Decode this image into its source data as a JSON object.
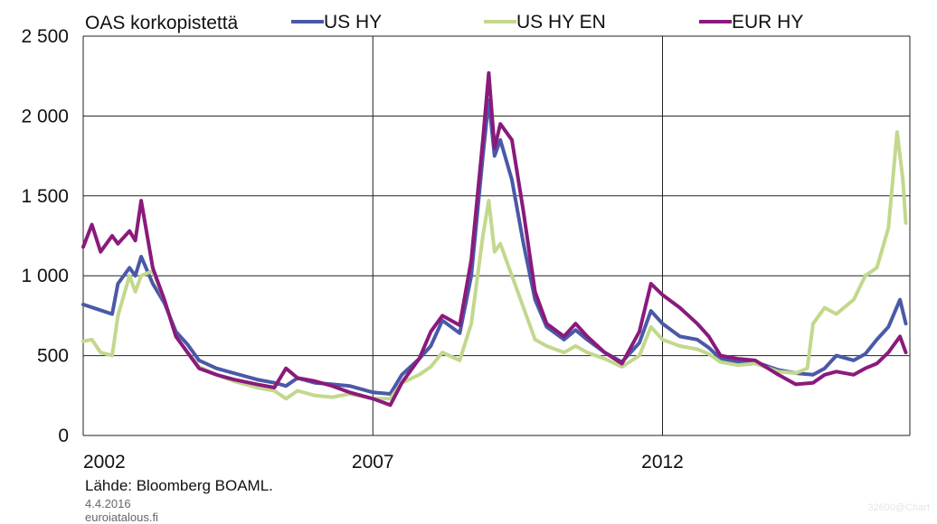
{
  "chart_data": {
    "type": "line",
    "title": "OAS korkopistettä",
    "x_tick_labels": [
      "2002",
      "2007",
      "2012"
    ],
    "x_ticks": [
      2002,
      2007,
      2012
    ],
    "xlim": [
      2002.0,
      2016.27
    ],
    "ylim": [
      0,
      2500
    ],
    "y_ticks": [
      0,
      500,
      1000,
      1500,
      2000,
      2500
    ],
    "y_tick_labels": [
      "0",
      "500",
      "1 000",
      "1 500",
      "2 000",
      "2 500"
    ],
    "grid": "vertical at year ticks, horizontal at 500 steps",
    "legend_placement": "top",
    "series": [
      {
        "name": "US HY",
        "color": "#4a59a7",
        "points": [
          [
            2002.0,
            820
          ],
          [
            2002.25,
            790
          ],
          [
            2002.5,
            760
          ],
          [
            2002.6,
            950
          ],
          [
            2002.8,
            1050
          ],
          [
            2002.9,
            1000
          ],
          [
            2003.0,
            1120
          ],
          [
            2003.2,
            950
          ],
          [
            2003.4,
            830
          ],
          [
            2003.6,
            650
          ],
          [
            2003.8,
            570
          ],
          [
            2004.0,
            470
          ],
          [
            2004.3,
            420
          ],
          [
            2004.6,
            390
          ],
          [
            2005.0,
            350
          ],
          [
            2005.3,
            330
          ],
          [
            2005.5,
            310
          ],
          [
            2005.7,
            360
          ],
          [
            2006.0,
            330
          ],
          [
            2006.3,
            320
          ],
          [
            2006.6,
            310
          ],
          [
            2007.0,
            270
          ],
          [
            2007.3,
            260
          ],
          [
            2007.5,
            380
          ],
          [
            2007.8,
            480
          ],
          [
            2008.0,
            560
          ],
          [
            2008.2,
            720
          ],
          [
            2008.5,
            640
          ],
          [
            2008.7,
            1000
          ],
          [
            2008.9,
            1750
          ],
          [
            2009.0,
            2100
          ],
          [
            2009.1,
            1750
          ],
          [
            2009.2,
            1850
          ],
          [
            2009.4,
            1600
          ],
          [
            2009.6,
            1200
          ],
          [
            2009.8,
            850
          ],
          [
            2010.0,
            680
          ],
          [
            2010.3,
            600
          ],
          [
            2010.5,
            660
          ],
          [
            2010.7,
            600
          ],
          [
            2011.0,
            520
          ],
          [
            2011.3,
            460
          ],
          [
            2011.6,
            580
          ],
          [
            2011.8,
            780
          ],
          [
            2012.0,
            700
          ],
          [
            2012.3,
            620
          ],
          [
            2012.6,
            600
          ],
          [
            2012.8,
            550
          ],
          [
            2013.0,
            480
          ],
          [
            2013.3,
            460
          ],
          [
            2013.6,
            460
          ],
          [
            2014.0,
            410
          ],
          [
            2014.3,
            390
          ],
          [
            2014.6,
            380
          ],
          [
            2014.8,
            420
          ],
          [
            2015.0,
            500
          ],
          [
            2015.3,
            470
          ],
          [
            2015.5,
            510
          ],
          [
            2015.7,
            600
          ],
          [
            2015.9,
            680
          ],
          [
            2016.1,
            850
          ],
          [
            2016.2,
            700
          ]
        ]
      },
      {
        "name": "US HY EN",
        "color": "#c2d88d",
        "points": [
          [
            2002.0,
            590
          ],
          [
            2002.15,
            600
          ],
          [
            2002.3,
            520
          ],
          [
            2002.5,
            500
          ],
          [
            2002.6,
            750
          ],
          [
            2002.8,
            1000
          ],
          [
            2002.9,
            900
          ],
          [
            2003.0,
            1000
          ],
          [
            2003.2,
            1030
          ],
          [
            2003.4,
            850
          ],
          [
            2003.6,
            620
          ],
          [
            2003.8,
            520
          ],
          [
            2004.0,
            430
          ],
          [
            2004.3,
            380
          ],
          [
            2004.6,
            340
          ],
          [
            2005.0,
            300
          ],
          [
            2005.3,
            280
          ],
          [
            2005.5,
            230
          ],
          [
            2005.7,
            280
          ],
          [
            2006.0,
            250
          ],
          [
            2006.3,
            240
          ],
          [
            2006.6,
            260
          ],
          [
            2007.0,
            230
          ],
          [
            2007.3,
            230
          ],
          [
            2007.5,
            330
          ],
          [
            2007.8,
            380
          ],
          [
            2008.0,
            430
          ],
          [
            2008.2,
            520
          ],
          [
            2008.5,
            470
          ],
          [
            2008.7,
            700
          ],
          [
            2008.9,
            1250
          ],
          [
            2009.0,
            1470
          ],
          [
            2009.1,
            1150
          ],
          [
            2009.2,
            1200
          ],
          [
            2009.4,
            1000
          ],
          [
            2009.6,
            800
          ],
          [
            2009.8,
            600
          ],
          [
            2010.0,
            560
          ],
          [
            2010.3,
            520
          ],
          [
            2010.5,
            560
          ],
          [
            2010.7,
            520
          ],
          [
            2011.0,
            480
          ],
          [
            2011.3,
            430
          ],
          [
            2011.6,
            500
          ],
          [
            2011.8,
            680
          ],
          [
            2012.0,
            600
          ],
          [
            2012.3,
            560
          ],
          [
            2012.6,
            540
          ],
          [
            2012.8,
            510
          ],
          [
            2013.0,
            460
          ],
          [
            2013.3,
            440
          ],
          [
            2013.6,
            450
          ],
          [
            2014.0,
            400
          ],
          [
            2014.3,
            390
          ],
          [
            2014.5,
            420
          ],
          [
            2014.6,
            700
          ],
          [
            2014.8,
            800
          ],
          [
            2015.0,
            760
          ],
          [
            2015.3,
            850
          ],
          [
            2015.5,
            1000
          ],
          [
            2015.7,
            1050
          ],
          [
            2015.9,
            1300
          ],
          [
            2016.05,
            1900
          ],
          [
            2016.15,
            1600
          ],
          [
            2016.2,
            1330
          ]
        ]
      },
      {
        "name": "EUR HY",
        "color": "#8a1a7c",
        "points": [
          [
            2002.0,
            1180
          ],
          [
            2002.15,
            1320
          ],
          [
            2002.3,
            1150
          ],
          [
            2002.5,
            1250
          ],
          [
            2002.6,
            1200
          ],
          [
            2002.8,
            1280
          ],
          [
            2002.9,
            1220
          ],
          [
            2003.0,
            1470
          ],
          [
            2003.2,
            1050
          ],
          [
            2003.4,
            850
          ],
          [
            2003.6,
            620
          ],
          [
            2003.8,
            520
          ],
          [
            2004.0,
            420
          ],
          [
            2004.3,
            380
          ],
          [
            2004.6,
            350
          ],
          [
            2005.0,
            320
          ],
          [
            2005.3,
            300
          ],
          [
            2005.5,
            420
          ],
          [
            2005.7,
            360
          ],
          [
            2006.0,
            340
          ],
          [
            2006.3,
            310
          ],
          [
            2006.6,
            270
          ],
          [
            2007.0,
            230
          ],
          [
            2007.3,
            190
          ],
          [
            2007.5,
            330
          ],
          [
            2007.8,
            480
          ],
          [
            2008.0,
            650
          ],
          [
            2008.2,
            750
          ],
          [
            2008.5,
            690
          ],
          [
            2008.7,
            1100
          ],
          [
            2008.9,
            1850
          ],
          [
            2009.0,
            2270
          ],
          [
            2009.1,
            1800
          ],
          [
            2009.2,
            1950
          ],
          [
            2009.4,
            1850
          ],
          [
            2009.6,
            1400
          ],
          [
            2009.8,
            900
          ],
          [
            2010.0,
            700
          ],
          [
            2010.3,
            620
          ],
          [
            2010.5,
            700
          ],
          [
            2010.7,
            620
          ],
          [
            2011.0,
            520
          ],
          [
            2011.3,
            450
          ],
          [
            2011.6,
            650
          ],
          [
            2011.8,
            950
          ],
          [
            2012.0,
            880
          ],
          [
            2012.3,
            800
          ],
          [
            2012.6,
            700
          ],
          [
            2012.8,
            620
          ],
          [
            2013.0,
            500
          ],
          [
            2013.3,
            480
          ],
          [
            2013.6,
            470
          ],
          [
            2014.0,
            380
          ],
          [
            2014.3,
            320
          ],
          [
            2014.6,
            330
          ],
          [
            2014.8,
            380
          ],
          [
            2015.0,
            400
          ],
          [
            2015.3,
            380
          ],
          [
            2015.5,
            420
          ],
          [
            2015.7,
            450
          ],
          [
            2015.9,
            520
          ],
          [
            2016.1,
            620
          ],
          [
            2016.2,
            520
          ]
        ]
      }
    ]
  },
  "source": "Lähde:  Bloomberg  BOAML.",
  "date": "4.4.2016",
  "site": "euroiatalous.fi",
  "watermark": "32600@Chart"
}
